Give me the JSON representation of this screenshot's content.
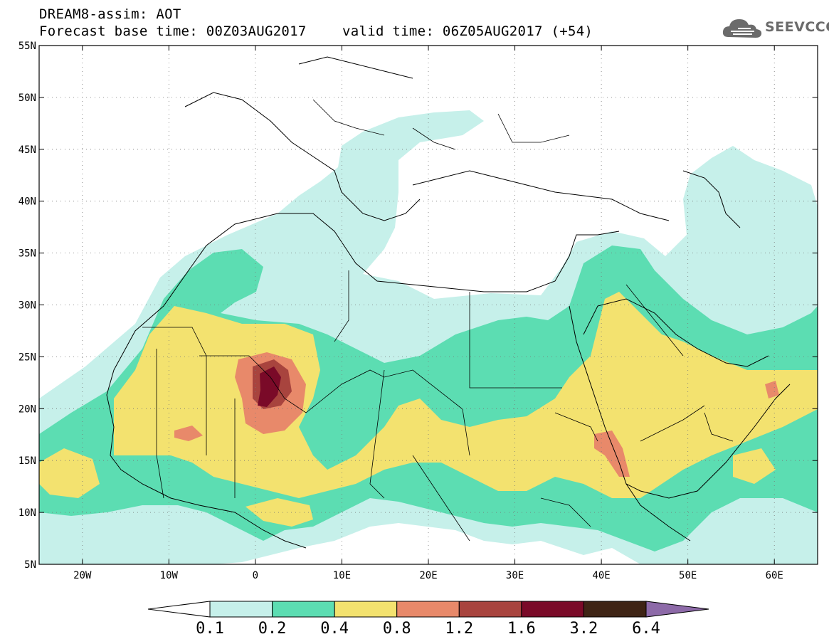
{
  "header": {
    "title": "DREAM8-assim: AOT",
    "base_time": "Forecast base time: 00Z03AUG2017",
    "valid_time": "valid time: 06Z05AUG2017 (+54)"
  },
  "logo": {
    "text": "SEEVCCC",
    "icon": "cloud-icon",
    "color": "#6b6b6b"
  },
  "map": {
    "projection": "lat-lon",
    "lon_range": [
      -25,
      65
    ],
    "lat_range": [
      5,
      55
    ],
    "lat_labels": [
      "55N",
      "50N",
      "45N",
      "40N",
      "35N",
      "30N",
      "25N",
      "20N",
      "15N",
      "10N",
      "5N"
    ],
    "lat_values": [
      55,
      50,
      45,
      40,
      35,
      30,
      25,
      20,
      15,
      10,
      5
    ],
    "lon_labels": [
      "20W",
      "10W",
      "0",
      "10E",
      "20E",
      "30E",
      "40E",
      "50E",
      "60E"
    ],
    "lon_values": [
      -20,
      -10,
      0,
      10,
      20,
      30,
      40,
      50,
      60
    ],
    "grid": "dotted",
    "field": "aerosol optical thickness"
  },
  "colorbar": {
    "levels": [
      "0.1",
      "0.2",
      "0.4",
      "0.8",
      "1.2",
      "1.6",
      "3.2",
      "6.4"
    ],
    "colors": [
      "#ffffff",
      "#c6f0ea",
      "#5cddb2",
      "#f3e26f",
      "#e8896a",
      "#a8443e",
      "#7a0a28",
      "#3e2415",
      "#8d6aa8"
    ],
    "extends": "both"
  }
}
